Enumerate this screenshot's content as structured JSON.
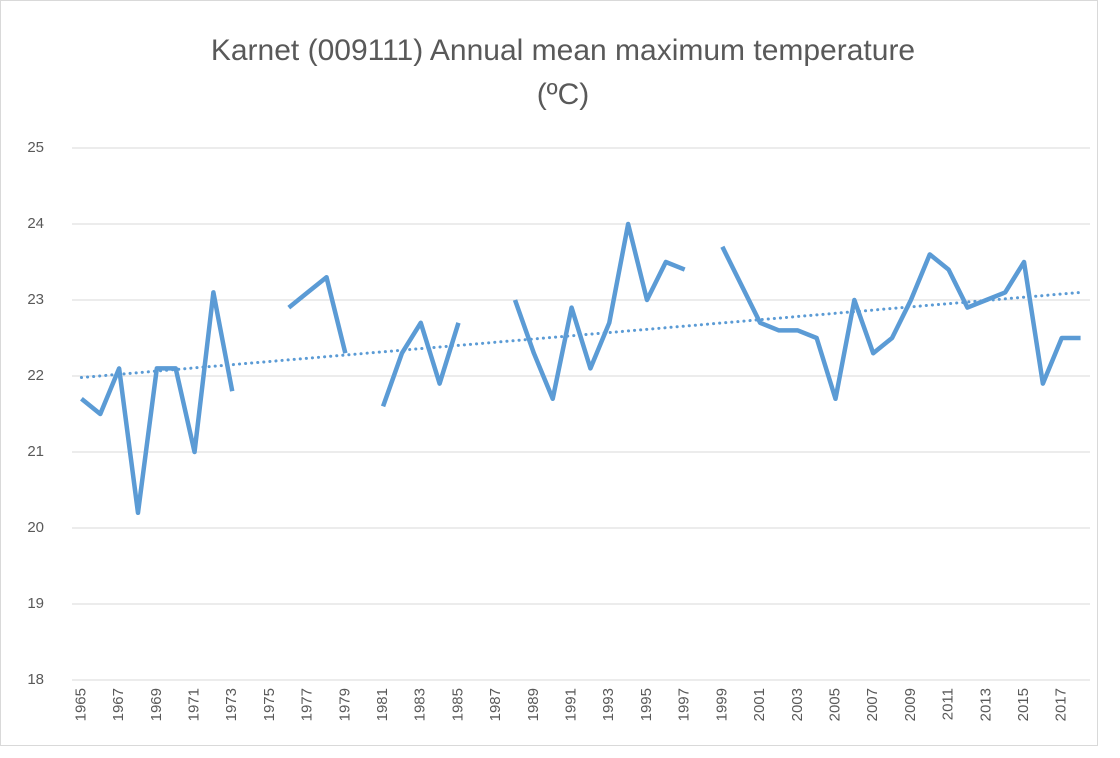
{
  "chart_data": {
    "type": "line",
    "title": [
      "Karnet (009111) Annual mean maximum temperature",
      "(ºC)"
    ],
    "categories": [
      "1965",
      null,
      "1967",
      null,
      "1969",
      null,
      "1971",
      null,
      "1973",
      null,
      "1975",
      null,
      "1977",
      null,
      "1979",
      null,
      "1981",
      null,
      "1983",
      null,
      "1985",
      null,
      "1987",
      null,
      "1989",
      null,
      "1991",
      null,
      "1993",
      null,
      "1995",
      null,
      "1997",
      null,
      "1999",
      null,
      "2001",
      null,
      "2003",
      null,
      "2005",
      null,
      "2007",
      null,
      "2009",
      null,
      "2011",
      null,
      "2013",
      null,
      "2015",
      null,
      "2017",
      null
    ],
    "series": [
      {
        "color": "#5b9bd5",
        "values": [
          21.7,
          21.5,
          22.1,
          20.2,
          22.1,
          22.1,
          21.0,
          23.1,
          21.8,
          null,
          null,
          22.9,
          23.1,
          23.3,
          22.3,
          null,
          21.6,
          22.3,
          22.7,
          21.9,
          22.7,
          null,
          null,
          23.0,
          22.3,
          21.7,
          22.9,
          22.1,
          22.7,
          24.0,
          23.0,
          23.5,
          23.4,
          null,
          23.7,
          23.2,
          22.7,
          22.6,
          22.6,
          22.5,
          21.7,
          23.0,
          22.3,
          22.5,
          23.0,
          23.6,
          23.4,
          22.9,
          23.0,
          23.1,
          23.5,
          21.9,
          22.5,
          22.5
        ]
      }
    ],
    "trend": {
      "color": "#5b9bd5",
      "style": "dotted",
      "values": [
        21.98,
        23.1
      ]
    },
    "ylim": [
      18,
      25
    ],
    "yticks": [
      18,
      19,
      20,
      21,
      22,
      23,
      24,
      25
    ],
    "grid": true
  }
}
